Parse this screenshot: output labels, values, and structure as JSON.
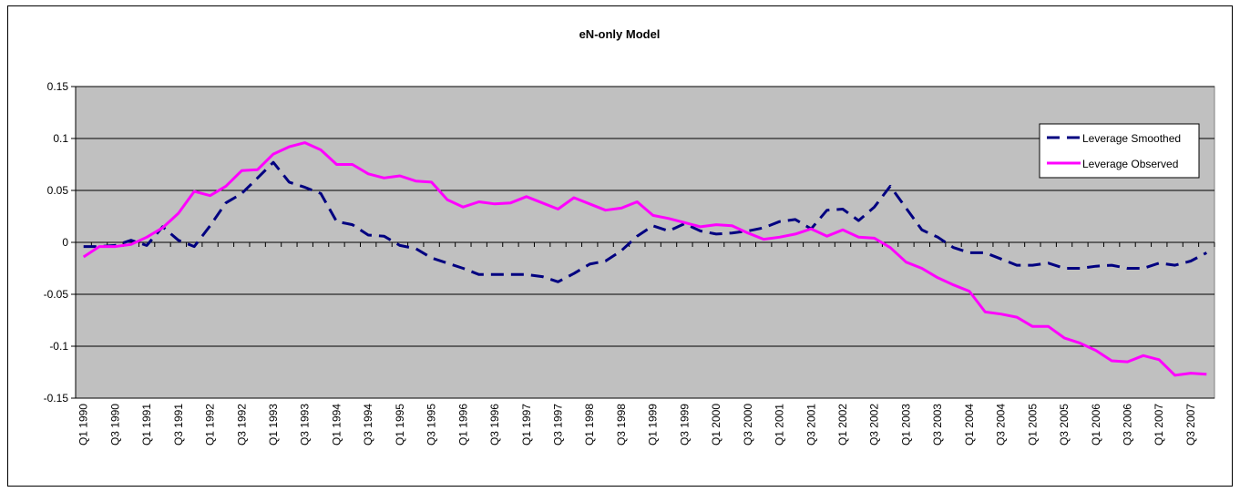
{
  "chart_data": {
    "type": "line",
    "title": "eN-only Model",
    "categories": [
      "Q1 1990",
      null,
      "Q3 1990",
      null,
      "Q1 1991",
      null,
      "Q3 1991",
      null,
      "Q1 1992",
      null,
      "Q3 1992",
      null,
      "Q1 1993",
      null,
      "Q3 1993",
      null,
      "Q1 1994",
      null,
      "Q3 1994",
      null,
      "Q1 1995",
      null,
      "Q3 1995",
      null,
      "Q1 1996",
      null,
      "Q3 1996",
      null,
      "Q1 1997",
      null,
      "Q3 1997",
      null,
      "Q1 1998",
      null,
      "Q3 1998",
      null,
      "Q1 1999",
      null,
      "Q3 1999",
      null,
      "Q1 2000",
      null,
      "Q3 2000",
      null,
      "Q1 2001",
      null,
      "Q3 2001",
      null,
      "Q1 2002",
      null,
      "Q3 2002",
      null,
      "Q1 2003",
      null,
      "Q3 2003",
      null,
      "Q1 2004",
      null,
      "Q3 2004",
      null,
      "Q1 2005",
      null,
      "Q3 2005",
      null,
      "Q1 2006",
      null,
      "Q3 2006",
      null,
      "Q1 2007",
      null,
      "Q3 2007",
      null
    ],
    "series": [
      {
        "name": "Leverage Smoothed",
        "color": "#000080",
        "dashed": true,
        "values": [
          -0.004,
          -0.004,
          -0.003,
          0.002,
          -0.003,
          0.015,
          0.002,
          -0.004,
          0.016,
          0.038,
          0.047,
          0.062,
          0.077,
          0.058,
          0.053,
          0.047,
          0.02,
          0.017,
          0.007,
          0.006,
          -0.003,
          -0.006,
          -0.015,
          -0.02,
          -0.025,
          -0.031,
          -0.031,
          -0.031,
          -0.031,
          -0.033,
          -0.038,
          -0.03,
          -0.021,
          -0.018,
          -0.008,
          0.006,
          0.016,
          0.011,
          0.018,
          0.011,
          0.008,
          0.009,
          0.011,
          0.014,
          0.02,
          0.022,
          0.013,
          0.031,
          0.032,
          0.021,
          0.034,
          0.054,
          0.033,
          0.012,
          0.005,
          -0.005,
          -0.01,
          -0.01,
          -0.016,
          -0.022,
          -0.022,
          -0.02,
          -0.025,
          -0.025,
          -0.023,
          -0.022,
          -0.025,
          -0.025,
          -0.02,
          -0.022,
          -0.018,
          -0.01
        ]
      },
      {
        "name": "Leverage Observed",
        "color": "#ff00ff",
        "dashed": false,
        "values": [
          -0.014,
          -0.004,
          -0.004,
          -0.002,
          0.005,
          0.014,
          0.028,
          0.049,
          0.045,
          0.054,
          0.069,
          0.07,
          0.085,
          0.092,
          0.096,
          0.089,
          0.075,
          0.075,
          0.066,
          0.062,
          0.064,
          0.059,
          0.058,
          0.041,
          0.034,
          0.039,
          0.037,
          0.038,
          0.044,
          0.038,
          0.032,
          0.043,
          0.037,
          0.031,
          0.033,
          0.039,
          0.026,
          0.023,
          0.019,
          0.015,
          0.017,
          0.016,
          0.009,
          0.003,
          0.005,
          0.008,
          0.013,
          0.006,
          0.012,
          0.005,
          0.004,
          -0.005,
          -0.019,
          -0.025,
          -0.034,
          -0.041,
          -0.047,
          -0.067,
          -0.069,
          -0.072,
          -0.081,
          -0.081,
          -0.092,
          -0.097,
          -0.104,
          -0.114,
          -0.115,
          -0.109,
          -0.113,
          -0.128,
          -0.126,
          -0.127
        ]
      }
    ],
    "ylim": [
      -0.15,
      0.15
    ],
    "yticks": [
      -0.15,
      -0.1,
      -0.05,
      0,
      0.05,
      0.1,
      0.15
    ],
    "grid": true,
    "legend": "upper right",
    "plot_background": "#c0c0c0"
  }
}
